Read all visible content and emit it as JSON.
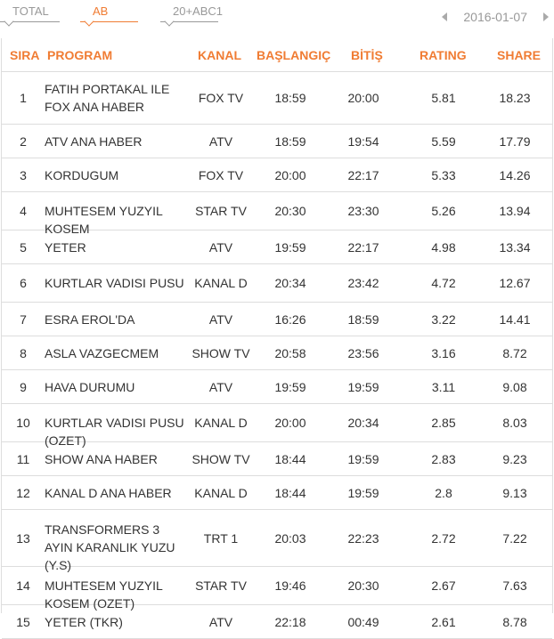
{
  "tabs": [
    {
      "label": "TOTAL"
    },
    {
      "label": "AB"
    },
    {
      "label": "20+ABC1"
    }
  ],
  "date": "2016-01-07",
  "headers": {
    "rank": "SIRA",
    "program": "PROGRAM",
    "channel": "KANAL",
    "start": "BAŞLANGIÇ",
    "end": "BİTİŞ",
    "rating": "RATING",
    "share": "SHARE"
  },
  "rows": [
    {
      "rank": "1",
      "program": "FATIH PORTAKAL ILE FOX ANA HABER",
      "channel": "FOX TV",
      "start": "18:59",
      "end": "20:00",
      "rating": "5.81",
      "share": "18.23"
    },
    {
      "rank": "2",
      "program": "ATV ANA HABER",
      "channel": "ATV",
      "start": "18:59",
      "end": "19:54",
      "rating": "5.59",
      "share": "17.79"
    },
    {
      "rank": "3",
      "program": "KORDUGUM",
      "channel": "FOX TV",
      "start": "20:00",
      "end": "22:17",
      "rating": "5.33",
      "share": "14.26"
    },
    {
      "rank": "4",
      "program": "MUHTESEM YUZYIL KOSEM",
      "channel": "STAR TV",
      "start": "20:30",
      "end": "23:30",
      "rating": "5.26",
      "share": "13.94"
    },
    {
      "rank": "5",
      "program": "YETER",
      "channel": "ATV",
      "start": "19:59",
      "end": "22:17",
      "rating": "4.98",
      "share": "13.34"
    },
    {
      "rank": "6",
      "program": "KURTLAR VADISI PUSU",
      "channel": "KANAL D",
      "start": "20:34",
      "end": "23:42",
      "rating": "4.72",
      "share": "12.67"
    },
    {
      "rank": "7",
      "program": "ESRA EROL'DA",
      "channel": "ATV",
      "start": "16:26",
      "end": "18:59",
      "rating": "3.22",
      "share": "14.41"
    },
    {
      "rank": "8",
      "program": "ASLA VAZGECMEM",
      "channel": "SHOW TV",
      "start": "20:58",
      "end": "23:56",
      "rating": "3.16",
      "share": "8.72"
    },
    {
      "rank": "9",
      "program": "HAVA DURUMU",
      "channel": "ATV",
      "start": "19:59",
      "end": "19:59",
      "rating": "3.11",
      "share": "9.08"
    },
    {
      "rank": "10",
      "program": "KURTLAR VADISI PUSU (OZET)",
      "channel": "KANAL D",
      "start": "20:00",
      "end": "20:34",
      "rating": "2.85",
      "share": "8.03"
    },
    {
      "rank": "11",
      "program": "SHOW ANA HABER",
      "channel": "SHOW TV",
      "start": "18:44",
      "end": "19:59",
      "rating": "2.83",
      "share": "9.23"
    },
    {
      "rank": "12",
      "program": "KANAL D ANA HABER",
      "channel": "KANAL D",
      "start": "18:44",
      "end": "19:59",
      "rating": "2.8",
      "share": "9.13"
    },
    {
      "rank": "13",
      "program": "TRANSFORMERS 3 AYIN KARANLIK YUZU (Y.S)",
      "channel": "TRT 1",
      "start": "20:03",
      "end": "22:23",
      "rating": "2.72",
      "share": "7.22"
    },
    {
      "rank": "14",
      "program": "MUHTESEM YUZYIL KOSEM (OZET)",
      "channel": "STAR TV",
      "start": "19:46",
      "end": "20:30",
      "rating": "2.67",
      "share": "7.63"
    },
    {
      "rank": "15",
      "program": "YETER (TKR)",
      "channel": "ATV",
      "start": "22:18",
      "end": "00:49",
      "rating": "2.61",
      "share": "8.78"
    }
  ],
  "colors": {
    "accent": "#f07c33",
    "muted": "#999999",
    "text": "#333333",
    "divider": "#dddddd"
  }
}
